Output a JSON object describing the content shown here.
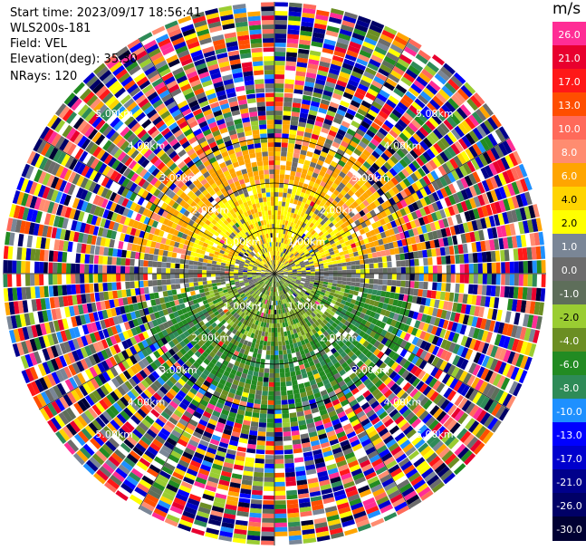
{
  "info": {
    "start_time": "Start time: 2023/09/17 18:56:41",
    "instrument": "WLS200s-181",
    "field": "Field: VEL",
    "elevation": "Elevation(deg): 35.30",
    "nrays": "NRays: 120"
  },
  "colorbar": {
    "unit": "m/s",
    "entries": [
      {
        "label": "26.0",
        "color": "#ff2d95"
      },
      {
        "label": "21.0",
        "color": "#e8002e"
      },
      {
        "label": "17.0",
        "color": "#ff1818"
      },
      {
        "label": "13.0",
        "color": "#ff4e00"
      },
      {
        "label": "10.0",
        "color": "#ff6a5a"
      },
      {
        "label": "8.0",
        "color": "#ff8c70"
      },
      {
        "label": "6.0",
        "color": "#ffa500"
      },
      {
        "label": "4.0",
        "color": "#ffd400"
      },
      {
        "label": "2.0",
        "color": "#ffff00"
      },
      {
        "label": "1.0",
        "color": "#7a8696"
      },
      {
        "label": "0.0",
        "color": "#6c6c6c"
      },
      {
        "label": "-1.0",
        "color": "#5e6e5a"
      },
      {
        "label": "-2.0",
        "color": "#9acd32"
      },
      {
        "label": "-4.0",
        "color": "#6b8e23"
      },
      {
        "label": "-6.0",
        "color": "#228b22"
      },
      {
        "label": "-8.0",
        "color": "#2e8b57"
      },
      {
        "label": "-10.0",
        "color": "#1e90ff"
      },
      {
        "label": "-13.0",
        "color": "#0000ff"
      },
      {
        "label": "-17.0",
        "color": "#0000cd"
      },
      {
        "label": "-21.0",
        "color": "#00008b"
      },
      {
        "label": "-26.0",
        "color": "#000066"
      },
      {
        "label": "-30.0",
        "color": "#000033"
      }
    ]
  },
  "chart_data": {
    "type": "heatmap",
    "projection": "polar-ppi",
    "field": "VEL",
    "n_rays": 120,
    "max_range_km": 6.0,
    "rings_km": [
      1.0,
      2.0,
      3.0,
      4.0,
      5.0,
      6.0
    ],
    "ring_labels": [
      "1.00km",
      "2.00km",
      "3.00km",
      "4.00km",
      "5.00km"
    ],
    "spoke_step_deg": 30,
    "velocity_scale": [
      -30.0,
      -26.0,
      -21.0,
      -17.0,
      -13.0,
      -10.0,
      -8.0,
      -6.0,
      -4.0,
      -2.0,
      -1.0,
      0.0,
      1.0,
      2.0,
      4.0,
      6.0,
      8.0,
      10.0,
      13.0,
      17.0,
      21.0,
      26.0
    ],
    "velocity_pattern": "coherent within ~3 km: north/northwest positive (2 to 6 m/s, yellow-orange), south/southeast negative (-2 to -8 m/s, green), near-zero gray along east-west; beyond ~3.5 km mostly noise covering full scale"
  }
}
